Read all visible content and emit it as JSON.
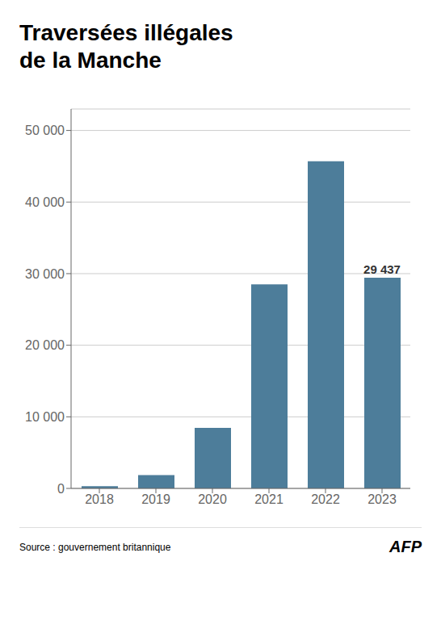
{
  "chart_data": {
    "type": "bar",
    "title": "Traversées illégales\nde la Manche",
    "categories": [
      "2018",
      "2019",
      "2020",
      "2021",
      "2022",
      "2023"
    ],
    "values": [
      300,
      1850,
      8450,
      28500,
      45700,
      29437
    ],
    "color": "#4d7d9a",
    "ylim": [
      0,
      53000
    ],
    "yticks": [
      0,
      {
        "value": 10000,
        "label": "10 000"
      },
      {
        "value": 20000,
        "label": "20 000"
      },
      {
        "value": 30000,
        "label": "30 000"
      },
      {
        "value": 40000,
        "label": "40 000"
      },
      {
        "value": 50000,
        "label": "50 000"
      }
    ],
    "grid": true,
    "annotations": [
      {
        "text": "29 437",
        "x": "2023",
        "y": 29437
      }
    ],
    "source": "Source : gouvernement britannique",
    "credit": "AFP"
  }
}
